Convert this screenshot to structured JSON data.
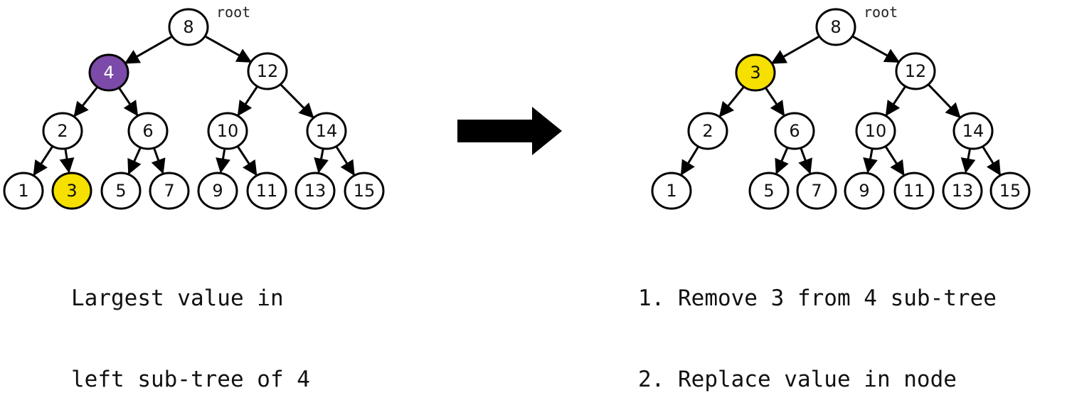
{
  "colors": {
    "node_fill": "#ffffff",
    "node_stroke": "#000000",
    "highlight_yellow": "#f5e000",
    "highlight_purple": "#7c4aa8",
    "edge": "#000000",
    "arrow": "#000000"
  },
  "left_tree": {
    "root_tag": "root",
    "nodes": [
      {
        "id": "n8",
        "label": "8",
        "style": "normal"
      },
      {
        "id": "n4",
        "label": "4",
        "style": "purple"
      },
      {
        "id": "n12",
        "label": "12",
        "style": "normal"
      },
      {
        "id": "n2",
        "label": "2",
        "style": "normal"
      },
      {
        "id": "n6",
        "label": "6",
        "style": "normal"
      },
      {
        "id": "n10",
        "label": "10",
        "style": "normal"
      },
      {
        "id": "n14",
        "label": "14",
        "style": "normal"
      },
      {
        "id": "n1",
        "label": "1",
        "style": "normal"
      },
      {
        "id": "n3",
        "label": "3",
        "style": "yellow"
      },
      {
        "id": "n5",
        "label": "5",
        "style": "normal"
      },
      {
        "id": "n7",
        "label": "7",
        "style": "normal"
      },
      {
        "id": "n9",
        "label": "9",
        "style": "normal"
      },
      {
        "id": "n11",
        "label": "11",
        "style": "normal"
      },
      {
        "id": "n13",
        "label": "13",
        "style": "normal"
      },
      {
        "id": "n15",
        "label": "15",
        "style": "normal"
      }
    ],
    "edges": [
      [
        "n8",
        "n4"
      ],
      [
        "n8",
        "n12"
      ],
      [
        "n4",
        "n2"
      ],
      [
        "n4",
        "n6"
      ],
      [
        "n12",
        "n10"
      ],
      [
        "n12",
        "n14"
      ],
      [
        "n2",
        "n1"
      ],
      [
        "n2",
        "n3"
      ],
      [
        "n6",
        "n5"
      ],
      [
        "n6",
        "n7"
      ],
      [
        "n10",
        "n9"
      ],
      [
        "n10",
        "n11"
      ],
      [
        "n14",
        "n13"
      ],
      [
        "n14",
        "n15"
      ]
    ],
    "caption": [
      "Largest value in",
      "left sub-tree of 4"
    ]
  },
  "right_tree": {
    "root_tag": "root",
    "nodes": [
      {
        "id": "n8",
        "label": "8",
        "style": "normal"
      },
      {
        "id": "n3",
        "label": "3",
        "style": "yellow"
      },
      {
        "id": "n12",
        "label": "12",
        "style": "normal"
      },
      {
        "id": "n2",
        "label": "2",
        "style": "normal"
      },
      {
        "id": "n6",
        "label": "6",
        "style": "normal"
      },
      {
        "id": "n10",
        "label": "10",
        "style": "normal"
      },
      {
        "id": "n14",
        "label": "14",
        "style": "normal"
      },
      {
        "id": "n1",
        "label": "1",
        "style": "normal"
      },
      {
        "id": "n5",
        "label": "5",
        "style": "normal"
      },
      {
        "id": "n7",
        "label": "7",
        "style": "normal"
      },
      {
        "id": "n9",
        "label": "9",
        "style": "normal"
      },
      {
        "id": "n11",
        "label": "11",
        "style": "normal"
      },
      {
        "id": "n13",
        "label": "13",
        "style": "normal"
      },
      {
        "id": "n15",
        "label": "15",
        "style": "normal"
      }
    ],
    "edges": [
      [
        "n8",
        "n3"
      ],
      [
        "n8",
        "n12"
      ],
      [
        "n3",
        "n2"
      ],
      [
        "n3",
        "n6"
      ],
      [
        "n12",
        "n10"
      ],
      [
        "n12",
        "n14"
      ],
      [
        "n2",
        "n1"
      ],
      [
        "n6",
        "n5"
      ],
      [
        "n6",
        "n7"
      ],
      [
        "n10",
        "n9"
      ],
      [
        "n10",
        "n11"
      ],
      [
        "n14",
        "n13"
      ],
      [
        "n14",
        "n15"
      ]
    ],
    "caption": [
      "1. Remove 3 from 4 sub-tree",
      "2. Replace value in node"
    ]
  },
  "transition_arrow": "right-arrow-icon"
}
